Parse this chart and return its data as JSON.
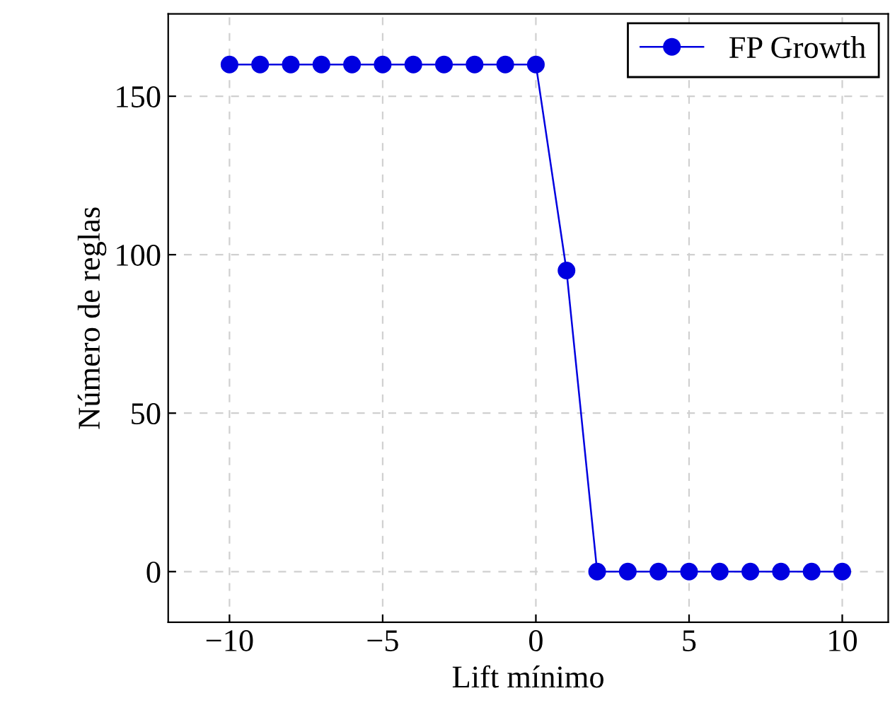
{
  "chart_data": {
    "type": "line",
    "xlabel": "Lift mínimo",
    "ylabel": "Número de reglas",
    "x": [
      -10,
      -9,
      -8,
      -7,
      -6,
      -5,
      -4,
      -3,
      -2,
      -1,
      0,
      1,
      2,
      3,
      4,
      5,
      6,
      7,
      8,
      9,
      10
    ],
    "series": [
      {
        "name": "FP Growth",
        "color": "#0000e0",
        "values": [
          160,
          160,
          160,
          160,
          160,
          160,
          160,
          160,
          160,
          160,
          160,
          95,
          0,
          0,
          0,
          0,
          0,
          0,
          0,
          0,
          0
        ]
      }
    ],
    "xlim": [
      -12,
      11.5
    ],
    "ylim": [
      -16,
      176
    ],
    "xticks": [
      {
        "value": -10,
        "label": "−10"
      },
      {
        "value": -5,
        "label": "−5"
      },
      0,
      5,
      10
    ],
    "yticks": [
      0,
      50,
      100,
      150
    ],
    "grid": true,
    "legend": "top right",
    "marker": "circle",
    "line_style": "solid"
  }
}
